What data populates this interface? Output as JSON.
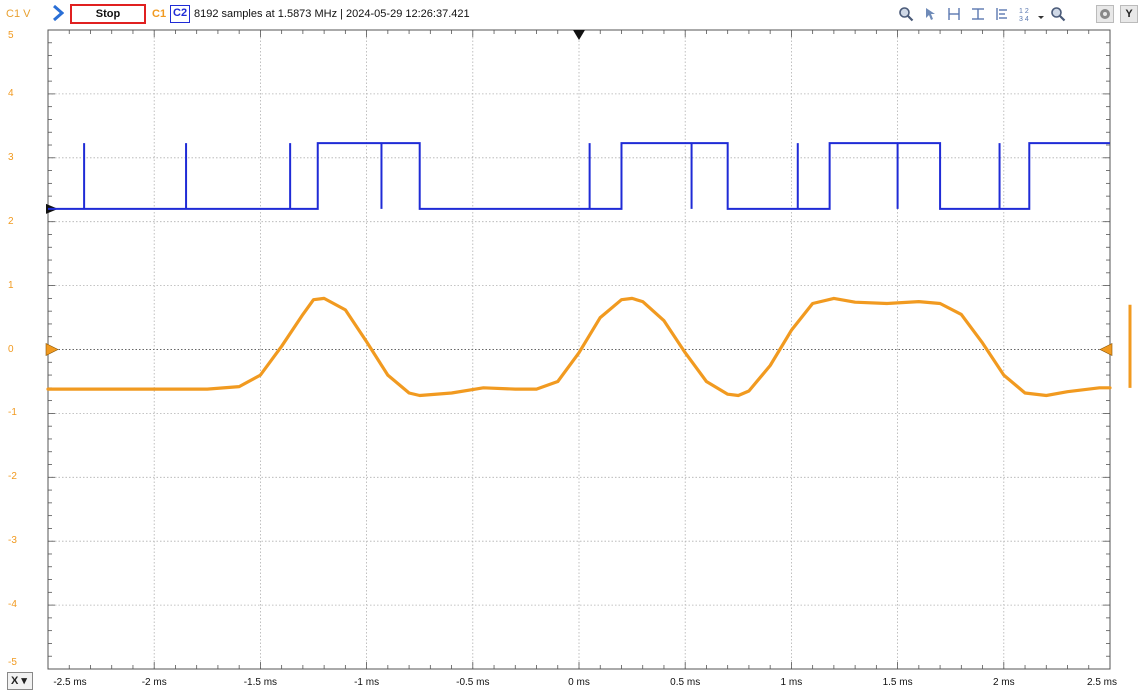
{
  "toolbar": {
    "y_unit": "C1 V",
    "stop_label": "Stop",
    "ch1_label": "C1",
    "ch2_label": "C2",
    "info": "8192 samples at 1.5873 MHz  | 2024-05-29 12:26:37.421",
    "y_button": "Y",
    "x_button": "X",
    "icons": [
      "zoom-in-icon",
      "cursor-icon",
      "horizontal-cursor-icon",
      "vertical-cursor-icon",
      "align-icon",
      "numbered-layout-icon",
      "dropdown-icon",
      "zoom-icon",
      "settings-icon"
    ]
  },
  "colors": {
    "ch1": "#f19a20",
    "ch2": "#1f2bd6",
    "stop_border": "#e02020",
    "grid": "#b0b0b0"
  },
  "chart_data": {
    "type": "line",
    "x_unit": "ms",
    "xlim": [
      -2.5,
      2.5
    ],
    "ylim": [
      -5,
      5
    ],
    "grid": true,
    "y_tick_labels": [
      "5",
      "4",
      "3",
      "2",
      "1",
      "0",
      "-1",
      "-2",
      "-3",
      "-4",
      "-5"
    ],
    "x_tick_labels": [
      "-2.5 ms",
      "-2 ms",
      "-1.5 ms",
      "-1 ms",
      "-0.5 ms",
      "0 ms",
      "0.5 ms",
      "1 ms",
      "1.5 ms",
      "2 ms",
      "2.5 ms"
    ],
    "trigger_time_ms": 0,
    "series": [
      {
        "name": "C1",
        "color": "#f19a20",
        "offset_marker_v": 0,
        "x": [
          -2.5,
          -1.75,
          -1.6,
          -1.5,
          -1.4,
          -1.3,
          -1.25,
          -1.2,
          -1.1,
          -1.0,
          -0.9,
          -0.8,
          -0.75,
          -0.6,
          -0.45,
          -0.3,
          -0.2,
          -0.1,
          0.0,
          0.1,
          0.2,
          0.25,
          0.3,
          0.4,
          0.5,
          0.6,
          0.7,
          0.75,
          0.8,
          0.9,
          1.0,
          1.1,
          1.2,
          1.3,
          1.45,
          1.6,
          1.7,
          1.8,
          1.9,
          2.0,
          2.1,
          2.2,
          2.3,
          2.45,
          2.5
        ],
        "y": [
          -0.62,
          -0.62,
          -0.58,
          -0.4,
          0.05,
          0.55,
          0.78,
          0.8,
          0.62,
          0.12,
          -0.4,
          -0.68,
          -0.72,
          -0.68,
          -0.6,
          -0.62,
          -0.62,
          -0.5,
          -0.05,
          0.5,
          0.78,
          0.8,
          0.75,
          0.45,
          -0.05,
          -0.5,
          -0.7,
          -0.72,
          -0.65,
          -0.25,
          0.3,
          0.72,
          0.8,
          0.74,
          0.72,
          0.75,
          0.72,
          0.55,
          0.1,
          -0.4,
          -0.68,
          -0.72,
          -0.66,
          -0.6,
          -0.6
        ]
      },
      {
        "name": "C2",
        "color": "#1f2bd6",
        "offset_marker_v": 2.2,
        "low_v": 2.2,
        "high_v": 3.23,
        "high_intervals_ms": [
          [
            -1.23,
            -0.75
          ],
          [
            0.2,
            0.7
          ],
          [
            1.18,
            1.7
          ],
          [
            2.12,
            2.5
          ]
        ],
        "spikes_up_ms": [
          -2.33,
          -1.85,
          -1.36,
          0.05,
          1.03
        ],
        "spikes_down_ms": [
          -0.93,
          0.53,
          1.5,
          1.98
        ]
      }
    ]
  }
}
